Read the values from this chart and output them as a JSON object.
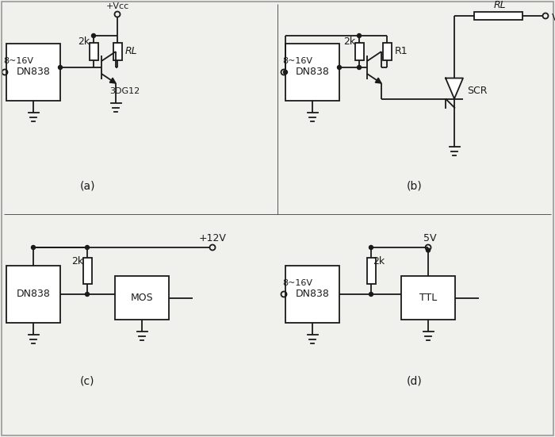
{
  "bg": "#f0f0ec",
  "lc": "#1a1a1a",
  "lw": 1.3,
  "blw": 1.3,
  "labels": {
    "a_voltage": "8~16V",
    "a_vcc": "+Vcc",
    "a_dn": "DN838",
    "a_2k": "2k",
    "a_rl": "RL",
    "a_transistor": "3DG12",
    "b_voltage": "8~16V",
    "b_dn": "DN838",
    "b_2k": "2k",
    "b_r1": "R1",
    "b_rl": "RL",
    "b_vcc": "Vcc",
    "b_scr": "SCR",
    "c_12v": "+12V",
    "c_dn": "DN838",
    "c_2k": "2k",
    "c_mos": "MOS",
    "d_voltage": "8~16V",
    "d_5v": "5V",
    "d_dn": "DN838",
    "d_2k": "2k",
    "d_ttl": "TTL"
  },
  "sublabels": [
    "(a)",
    "(b)",
    "(c)",
    "(d)"
  ]
}
